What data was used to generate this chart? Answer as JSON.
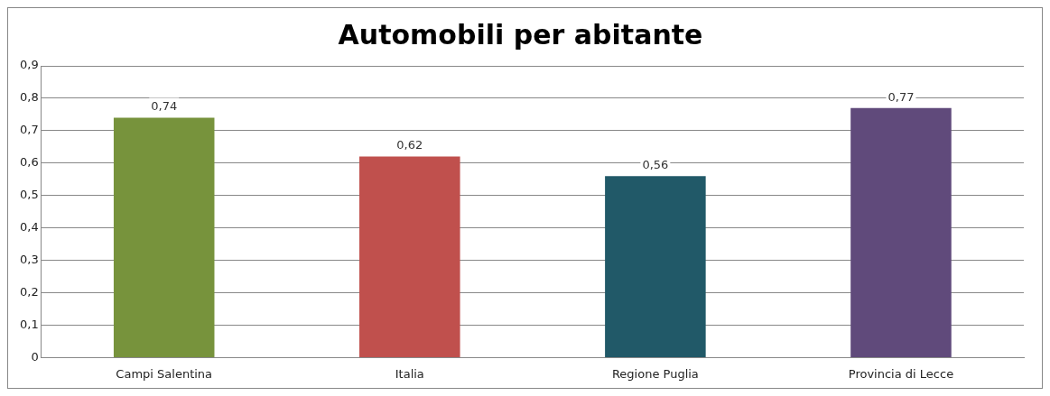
{
  "chart_data": {
    "type": "bar",
    "title": "Automobili per abitante",
    "categories": [
      "Campi Salentina",
      "Italia",
      "Regione Puglia",
      "Provincia di Lecce"
    ],
    "values": [
      0.74,
      0.62,
      0.56,
      0.77
    ],
    "colors": [
      "#77933c",
      "#c0504d",
      "#215968",
      "#604a7b"
    ],
    "value_labels": [
      "0,74",
      "0,62",
      "0,56",
      "0,77"
    ],
    "ylim": [
      0,
      0.9
    ],
    "yticks": [
      {
        "value": 0,
        "label": "0"
      },
      {
        "value": 0.1,
        "label": "0,1"
      },
      {
        "value": 0.2,
        "label": "0,2"
      },
      {
        "value": 0.3,
        "label": "0,3"
      },
      {
        "value": 0.4,
        "label": "0,4"
      },
      {
        "value": 0.5,
        "label": "0,5"
      },
      {
        "value": 0.6,
        "label": "0,6"
      },
      {
        "value": 0.7,
        "label": "0,7"
      },
      {
        "value": 0.8,
        "label": "0,8"
      },
      {
        "value": 0.9,
        "label": "0,9"
      }
    ],
    "grid": "y",
    "legend": false
  }
}
